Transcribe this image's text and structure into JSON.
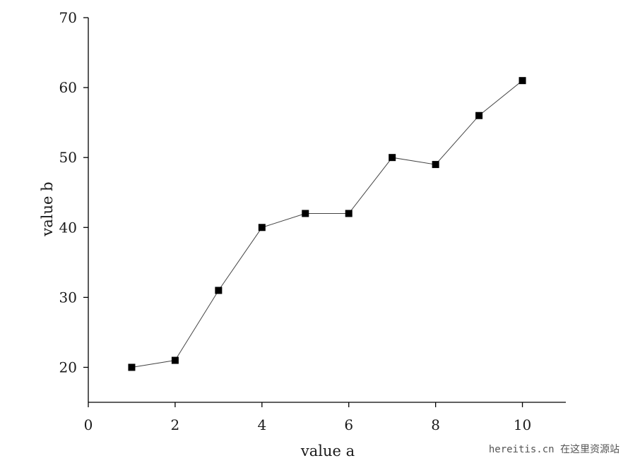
{
  "chart_data": {
    "type": "line",
    "xlabel": "value a",
    "ylabel": "value b",
    "xlim": [
      0,
      11
    ],
    "ylim": [
      15,
      70
    ],
    "xticks": [
      0,
      2,
      4,
      6,
      8,
      10
    ],
    "yticks": [
      20,
      30,
      40,
      50,
      60,
      70
    ],
    "grid": false,
    "marker": "square",
    "series": [
      {
        "x": [
          1,
          2,
          3,
          4,
          5,
          6,
          7,
          8,
          9,
          10
        ],
        "y": [
          20,
          21,
          31,
          40,
          42,
          42,
          50,
          49,
          56,
          61
        ]
      }
    ],
    "colors": {
      "line": "#444444",
      "marker": "#000000",
      "axis": "#000000"
    }
  },
  "watermark": "hereitis.cn 在这里资源站"
}
